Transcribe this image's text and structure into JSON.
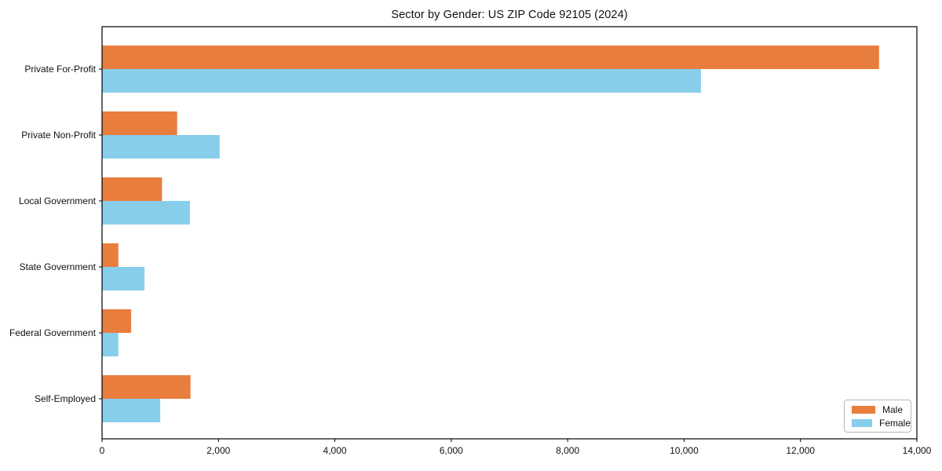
{
  "chart_data": {
    "type": "bar",
    "orientation": "horizontal",
    "title": "Sector by Gender: US ZIP Code 92105 (2024)",
    "categories": [
      "Private For-Profit",
      "Private Non-Profit",
      "Local Government",
      "State Government",
      "Federal Government",
      "Self-Employed"
    ],
    "series": [
      {
        "name": "Male",
        "color": "#E87D3E",
        "values": [
          13350,
          1290,
          1030,
          280,
          500,
          1520
        ]
      },
      {
        "name": "Female",
        "color": "#87CEEB",
        "values": [
          10290,
          2020,
          1510,
          730,
          280,
          1000
        ]
      }
    ],
    "xlabel": "",
    "ylabel": "",
    "xlim": [
      0,
      14000
    ],
    "xticks": [
      0,
      2000,
      4000,
      6000,
      8000,
      10000,
      12000,
      14000
    ],
    "xtick_labels": [
      "0",
      "2,000",
      "4,000",
      "6,000",
      "8,000",
      "10,000",
      "12,000",
      "14,000"
    ],
    "legend": {
      "position": "lower right",
      "entries": [
        "Male",
        "Female"
      ]
    },
    "grid": false,
    "axis_color": "#000000",
    "background": "#FFFFFF"
  }
}
